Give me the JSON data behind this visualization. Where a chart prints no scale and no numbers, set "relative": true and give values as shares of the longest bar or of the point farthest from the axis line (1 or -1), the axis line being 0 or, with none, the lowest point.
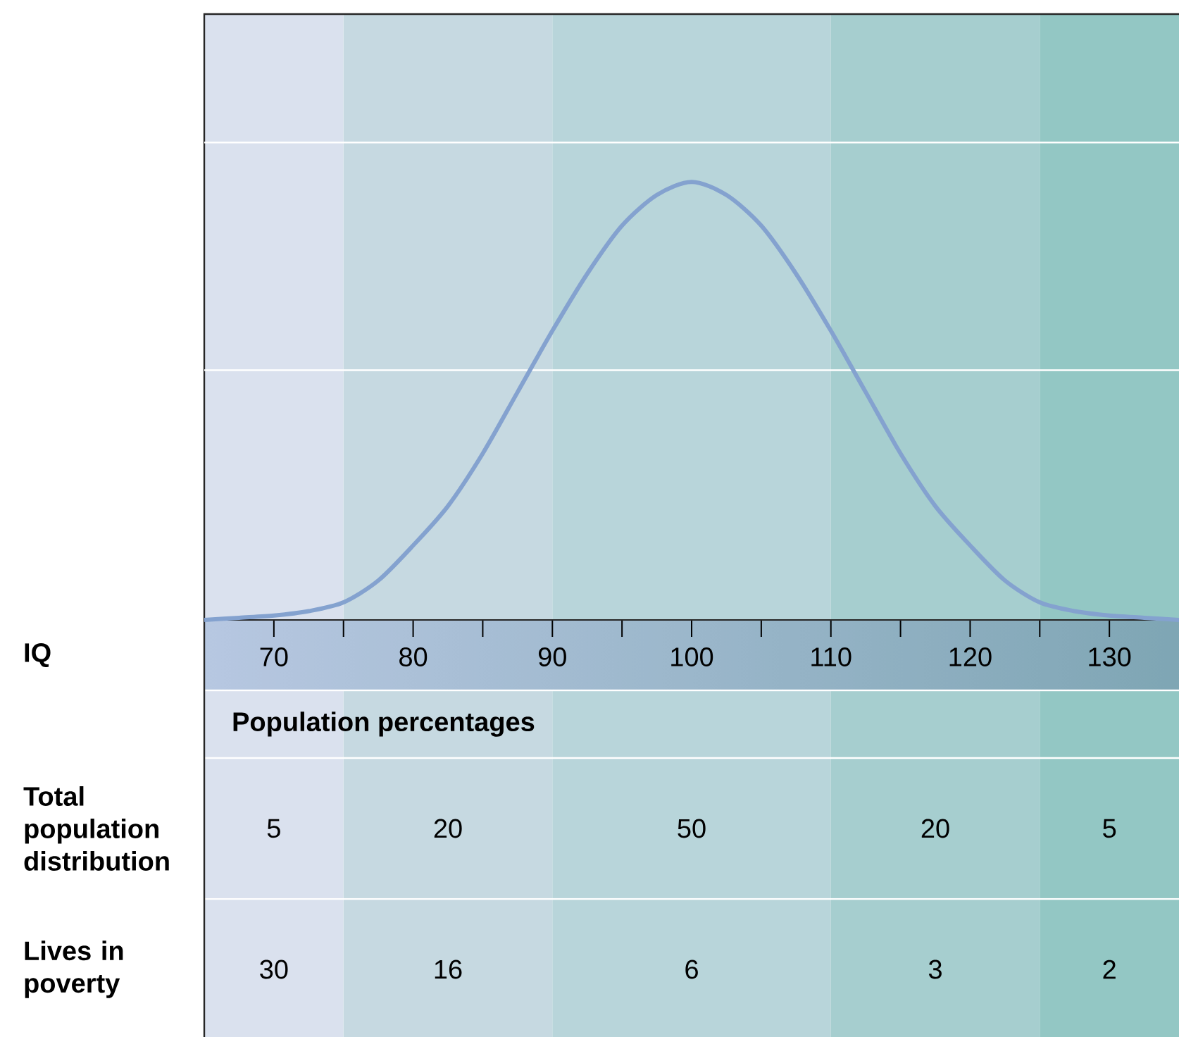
{
  "chart_data": {
    "type": "line",
    "relative": true,
    "xlim": [
      65,
      135
    ],
    "xticks": [
      70,
      {
        "value": 75,
        "label": null
      },
      80,
      {
        "value": 85,
        "label": null
      },
      90,
      {
        "value": 95,
        "label": null
      },
      100,
      {
        "value": 105,
        "label": null
      },
      110,
      {
        "value": 115,
        "label": null
      },
      120,
      {
        "value": 125,
        "label": null
      },
      130
    ],
    "marker": "none",
    "ref_lines": [
      {
        "axis": "y",
        "value": 0.57,
        "color": "#ffffff"
      },
      {
        "axis": "y",
        "value": 1.09,
        "color": "#ffffff"
      }
    ],
    "x": [
      65,
      67.5,
      70,
      72.5,
      75,
      77.5,
      80,
      82.5,
      85,
      87.5,
      90,
      92.5,
      95,
      97.5,
      100,
      102.5,
      105,
      107.5,
      110,
      112.5,
      115,
      117.5,
      120,
      122.5,
      125,
      127.5,
      130,
      132.5,
      135
    ],
    "series": [
      {
        "color": "#84a2cf",
        "values": [
          0,
          0.005,
          0.01,
          0.02,
          0.04,
          0.09,
          0.17,
          0.26,
          0.38,
          0.52,
          0.66,
          0.79,
          0.9,
          0.97,
          1,
          0.97,
          0.9,
          0.79,
          0.66,
          0.52,
          0.38,
          0.26,
          0.17,
          0.09,
          0.04,
          0.02,
          0.01,
          0.005,
          0
        ]
      }
    ],
    "bands": [
      {
        "axis": "x",
        "from": 65,
        "to": 75,
        "color": "#dae1ee"
      },
      {
        "axis": "x",
        "from": 75,
        "to": 90,
        "color": "#c6d9e1"
      },
      {
        "axis": "x",
        "from": 90,
        "to": 110,
        "color": "#b8d5da"
      },
      {
        "axis": "x",
        "from": 110,
        "to": 125,
        "color": "#a6cecf"
      },
      {
        "axis": "x",
        "from": 125,
        "to": 135,
        "color": "#93c7c4"
      }
    ],
    "annotations": [
      "IQ",
      "Population percentages",
      "Total population distribution",
      "5",
      "20",
      "50",
      "20",
      "5",
      "Lives in poverty",
      "30",
      "16",
      "6",
      "3",
      "2"
    ]
  }
}
